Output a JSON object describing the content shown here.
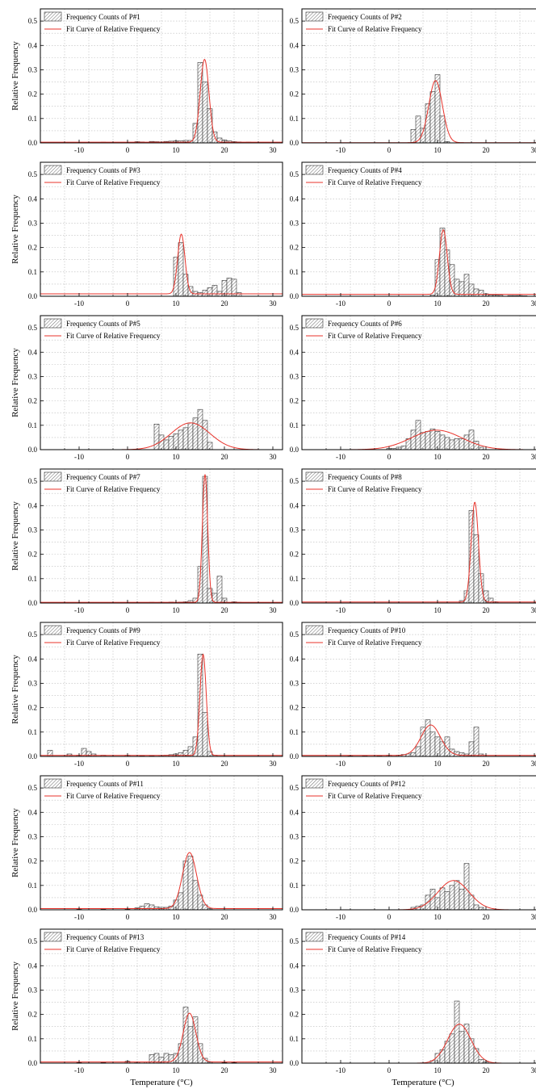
{
  "colors": {
    "bar_stroke": "#333333",
    "hatch": "#444444",
    "fit_curve": "#e8332b",
    "grid": "#bbbbbb",
    "frame": "#000000"
  },
  "shared": {
    "ylabel": "Relative Frequency",
    "xlabel": "Temperature (°C)",
    "legend_bar_prefix": "Frequency Counts of ",
    "legend_fit": "Fit Curve of Relative Frequency",
    "xlim": [
      -18,
      32
    ],
    "ylim": [
      0,
      0.55
    ],
    "xticks": [
      -10,
      0,
      10,
      20,
      30
    ],
    "yticks": [
      0.0,
      0.1,
      0.2,
      0.3,
      0.4,
      0.5
    ],
    "xtick_labels": [
      "-10",
      "0",
      "10",
      "20",
      "30"
    ],
    "ytick_labels": [
      "0.0",
      "0.1",
      "0.2",
      "0.3",
      "0.4",
      "0.5"
    ],
    "bin_width": 1,
    "grid": true,
    "legend_position": "top-left"
  },
  "chart_data": [
    {
      "type": "bar",
      "name": "P#1",
      "legend": "Frequency Counts of P#1",
      "bins": [
        [
          -15,
          0.002
        ],
        [
          -12,
          0.002
        ],
        [
          -10,
          0.002
        ],
        [
          -8,
          0.002
        ],
        [
          -5,
          0.003
        ],
        [
          -2,
          0.002
        ],
        [
          0,
          0.002
        ],
        [
          2,
          0.005
        ],
        [
          3,
          0.004
        ],
        [
          5,
          0.006
        ],
        [
          6,
          0.005
        ],
        [
          7,
          0.004
        ],
        [
          8,
          0.006
        ],
        [
          9,
          0.007
        ],
        [
          10,
          0.008
        ],
        [
          11,
          0.008
        ],
        [
          12,
          0.01
        ],
        [
          13,
          0.01
        ],
        [
          14,
          0.08
        ],
        [
          15,
          0.33
        ],
        [
          16,
          0.25
        ],
        [
          17,
          0.14
        ],
        [
          18,
          0.045
        ],
        [
          19,
          0.02
        ],
        [
          20,
          0.012
        ],
        [
          21,
          0.008
        ],
        [
          22,
          0.005
        ],
        [
          23,
          0.004
        ],
        [
          25,
          0.003
        ],
        [
          27,
          0.002
        ],
        [
          29,
          0.002
        ]
      ],
      "fit": {
        "mu": 15.9,
        "sigma": 0.9,
        "amp": 0.34,
        "base": 0.003
      }
    },
    {
      "type": "bar",
      "name": "P#2",
      "legend": "Frequency Counts of P#2",
      "bins": [
        [
          5,
          0.055
        ],
        [
          6,
          0.11
        ],
        [
          7,
          0.06
        ],
        [
          8,
          0.16
        ],
        [
          9,
          0.21
        ],
        [
          10,
          0.28
        ],
        [
          11,
          0.11
        ],
        [
          12,
          0.005
        ]
      ],
      "fit": {
        "mu": 9.6,
        "sigma": 1.4,
        "amp": 0.255,
        "base": 0.001
      }
    },
    {
      "type": "bar",
      "name": "P#3",
      "legend": "Frequency Counts of P#3",
      "bins": [
        [
          10,
          0.16
        ],
        [
          11,
          0.22
        ],
        [
          12,
          0.09
        ],
        [
          13,
          0.04
        ],
        [
          14,
          0.02
        ],
        [
          15,
          0.015
        ],
        [
          16,
          0.025
        ],
        [
          17,
          0.035
        ],
        [
          18,
          0.045
        ],
        [
          19,
          0.02
        ],
        [
          20,
          0.065
        ],
        [
          21,
          0.075
        ],
        [
          22,
          0.07
        ],
        [
          23,
          0.015
        ]
      ],
      "fit": {
        "mu": 11.1,
        "sigma": 0.75,
        "amp": 0.245,
        "base": 0.01
      }
    },
    {
      "type": "bar",
      "name": "P#4",
      "legend": "Frequency Counts of P#4",
      "bins": [
        [
          9,
          0.005
        ],
        [
          10,
          0.15
        ],
        [
          11,
          0.28
        ],
        [
          12,
          0.19
        ],
        [
          13,
          0.13
        ],
        [
          14,
          0.07
        ],
        [
          15,
          0.06
        ],
        [
          16,
          0.09
        ],
        [
          17,
          0.05
        ],
        [
          18,
          0.03
        ],
        [
          19,
          0.025
        ],
        [
          20,
          0.01
        ],
        [
          21,
          0.005
        ],
        [
          22,
          0.005
        ],
        [
          23,
          0.004
        ],
        [
          25,
          0.003
        ],
        [
          26,
          0.003
        ],
        [
          27,
          0.003
        ],
        [
          28,
          0.002
        ]
      ],
      "fit": {
        "mu": 11.2,
        "sigma": 0.8,
        "amp": 0.265,
        "base": 0.008
      }
    },
    {
      "type": "bar",
      "name": "P#5",
      "legend": "Frequency Counts of P#5",
      "bins": [
        [
          6,
          0.105
        ],
        [
          7,
          0.06
        ],
        [
          8,
          0.04
        ],
        [
          9,
          0.055
        ],
        [
          10,
          0.065
        ],
        [
          11,
          0.08
        ],
        [
          12,
          0.09
        ],
        [
          13,
          0.11
        ],
        [
          14,
          0.13
        ],
        [
          15,
          0.165
        ],
        [
          16,
          0.12
        ],
        [
          17,
          0.03
        ]
      ],
      "fit": {
        "mu": 13.0,
        "sigma": 4.0,
        "amp": 0.11,
        "base": 0.0
      }
    },
    {
      "type": "bar",
      "name": "P#6",
      "legend": "Frequency Counts of P#6",
      "bins": [
        [
          0,
          0.005
        ],
        [
          1,
          0.005
        ],
        [
          2,
          0.01
        ],
        [
          3,
          0.015
        ],
        [
          4,
          0.045
        ],
        [
          5,
          0.08
        ],
        [
          6,
          0.12
        ],
        [
          7,
          0.07
        ],
        [
          8,
          0.075
        ],
        [
          9,
          0.085
        ],
        [
          10,
          0.075
        ],
        [
          11,
          0.06
        ],
        [
          12,
          0.05
        ],
        [
          13,
          0.04
        ],
        [
          14,
          0.045
        ],
        [
          15,
          0.045
        ],
        [
          16,
          0.06
        ],
        [
          17,
          0.08
        ],
        [
          18,
          0.035
        ],
        [
          19,
          0.01
        ]
      ],
      "fit": {
        "mu": 9.8,
        "sigma": 5.2,
        "amp": 0.08,
        "base": 0.0
      }
    },
    {
      "type": "bar",
      "name": "P#7",
      "legend": "Frequency Counts of P#7",
      "bins": [
        [
          5,
          0.003
        ],
        [
          7,
          0.003
        ],
        [
          9,
          0.004
        ],
        [
          11,
          0.004
        ],
        [
          12,
          0.005
        ],
        [
          13,
          0.01
        ],
        [
          14,
          0.02
        ],
        [
          15,
          0.15
        ],
        [
          16,
          0.52
        ],
        [
          17,
          0.06
        ],
        [
          18,
          0.04
        ],
        [
          19,
          0.11
        ],
        [
          20,
          0.02
        ],
        [
          22,
          0.005
        ],
        [
          23,
          0.003
        ]
      ],
      "fit": {
        "mu": 16.0,
        "sigma": 0.55,
        "amp": 0.525,
        "base": 0.003
      }
    },
    {
      "type": "bar",
      "name": "P#8",
      "legend": "Frequency Counts of P#8",
      "bins": [
        [
          15,
          0.01
        ],
        [
          16,
          0.05
        ],
        [
          17,
          0.38
        ],
        [
          18,
          0.28
        ],
        [
          19,
          0.12
        ],
        [
          20,
          0.05
        ],
        [
          21,
          0.02
        ],
        [
          22,
          0.005
        ]
      ],
      "fit": {
        "mu": 17.7,
        "sigma": 0.75,
        "amp": 0.41,
        "base": 0.004
      }
    },
    {
      "type": "bar",
      "name": "P#9",
      "legend": "Frequency Counts of P#9",
      "bins": [
        [
          -16,
          0.025
        ],
        [
          -12,
          0.01
        ],
        [
          -10,
          0.005
        ],
        [
          -9,
          0.033
        ],
        [
          -8,
          0.02
        ],
        [
          -7,
          0.01
        ],
        [
          -5,
          0.005
        ],
        [
          0,
          0.005
        ],
        [
          3,
          0.003
        ],
        [
          5,
          0.003
        ],
        [
          7,
          0.004
        ],
        [
          8,
          0.005
        ],
        [
          9,
          0.007
        ],
        [
          10,
          0.01
        ],
        [
          11,
          0.015
        ],
        [
          12,
          0.025
        ],
        [
          13,
          0.04
        ],
        [
          14,
          0.08
        ],
        [
          15,
          0.42
        ],
        [
          16,
          0.18
        ],
        [
          17,
          0.02
        ],
        [
          18,
          0.005
        ]
      ],
      "fit": {
        "mu": 15.6,
        "sigma": 0.65,
        "amp": 0.415,
        "base": 0.004
      }
    },
    {
      "type": "bar",
      "name": "P#10",
      "legend": "Frequency Counts of P#10",
      "bins": [
        [
          -8,
          0.003
        ],
        [
          -5,
          0.003
        ],
        [
          -2,
          0.003
        ],
        [
          0,
          0.005
        ],
        [
          2,
          0.005
        ],
        [
          3,
          0.008
        ],
        [
          4,
          0.01
        ],
        [
          5,
          0.015
        ],
        [
          6,
          0.04
        ],
        [
          7,
          0.12
        ],
        [
          8,
          0.15
        ],
        [
          9,
          0.1
        ],
        [
          10,
          0.08
        ],
        [
          11,
          0.06
        ],
        [
          12,
          0.08
        ],
        [
          13,
          0.03
        ],
        [
          14,
          0.02
        ],
        [
          15,
          0.015
        ],
        [
          16,
          0.01
        ],
        [
          17,
          0.06
        ],
        [
          18,
          0.12
        ],
        [
          19,
          0.01
        ]
      ],
      "fit": {
        "mu": 8.6,
        "sigma": 2.0,
        "amp": 0.125,
        "base": 0.004
      }
    },
    {
      "type": "bar",
      "name": "P#11",
      "legend": "Frequency Counts of P#11",
      "bins": [
        [
          -10,
          0.002
        ],
        [
          -5,
          0.002
        ],
        [
          0,
          0.003
        ],
        [
          2,
          0.008
        ],
        [
          3,
          0.015
        ],
        [
          4,
          0.025
        ],
        [
          5,
          0.02
        ],
        [
          6,
          0.012
        ],
        [
          7,
          0.01
        ],
        [
          8,
          0.01
        ],
        [
          9,
          0.015
        ],
        [
          10,
          0.04
        ],
        [
          11,
          0.07
        ],
        [
          12,
          0.2
        ],
        [
          13,
          0.22
        ],
        [
          14,
          0.12
        ],
        [
          15,
          0.06
        ],
        [
          16,
          0.02
        ],
        [
          17,
          0.005
        ]
      ],
      "fit": {
        "mu": 12.8,
        "sigma": 1.45,
        "amp": 0.23,
        "base": 0.005
      }
    },
    {
      "type": "bar",
      "name": "P#12",
      "legend": "Frequency Counts of P#12",
      "bins": [
        [
          5,
          0.01
        ],
        [
          6,
          0.015
        ],
        [
          7,
          0.02
        ],
        [
          8,
          0.06
        ],
        [
          9,
          0.085
        ],
        [
          10,
          0.05
        ],
        [
          11,
          0.09
        ],
        [
          12,
          0.075
        ],
        [
          13,
          0.1
        ],
        [
          14,
          0.12
        ],
        [
          15,
          0.085
        ],
        [
          16,
          0.19
        ],
        [
          17,
          0.06
        ],
        [
          18,
          0.02
        ],
        [
          19,
          0.01
        ]
      ],
      "fit": {
        "mu": 13.3,
        "sigma": 3.2,
        "amp": 0.12,
        "base": 0.0
      }
    },
    {
      "type": "bar",
      "name": "P#13",
      "legend": "Frequency Counts of P#13",
      "bins": [
        [
          -10,
          0.002
        ],
        [
          -5,
          0.002
        ],
        [
          0,
          0.008
        ],
        [
          2,
          0.004
        ],
        [
          4,
          0.005
        ],
        [
          5,
          0.035
        ],
        [
          6,
          0.04
        ],
        [
          7,
          0.025
        ],
        [
          8,
          0.04
        ],
        [
          9,
          0.035
        ],
        [
          10,
          0.04
        ],
        [
          11,
          0.08
        ],
        [
          12,
          0.23
        ],
        [
          13,
          0.15
        ],
        [
          14,
          0.19
        ],
        [
          15,
          0.08
        ],
        [
          16,
          0.02
        ],
        [
          17,
          0.005
        ],
        [
          20,
          0.003
        ],
        [
          22,
          0.002
        ]
      ],
      "fit": {
        "mu": 12.8,
        "sigma": 1.3,
        "amp": 0.2,
        "base": 0.005
      }
    },
    {
      "type": "bar",
      "name": "P#14",
      "legend": "Frequency Counts of P#14",
      "bins": [
        [
          9,
          0.01
        ],
        [
          10,
          0.04
        ],
        [
          11,
          0.055
        ],
        [
          12,
          0.09
        ],
        [
          13,
          0.12
        ],
        [
          14,
          0.255
        ],
        [
          15,
          0.13
        ],
        [
          16,
          0.16
        ],
        [
          17,
          0.1
        ],
        [
          18,
          0.06
        ],
        [
          19,
          0.015
        ],
        [
          20,
          0.005
        ]
      ],
      "fit": {
        "mu": 14.5,
        "sigma": 2.4,
        "amp": 0.16,
        "base": 0.0
      }
    }
  ]
}
